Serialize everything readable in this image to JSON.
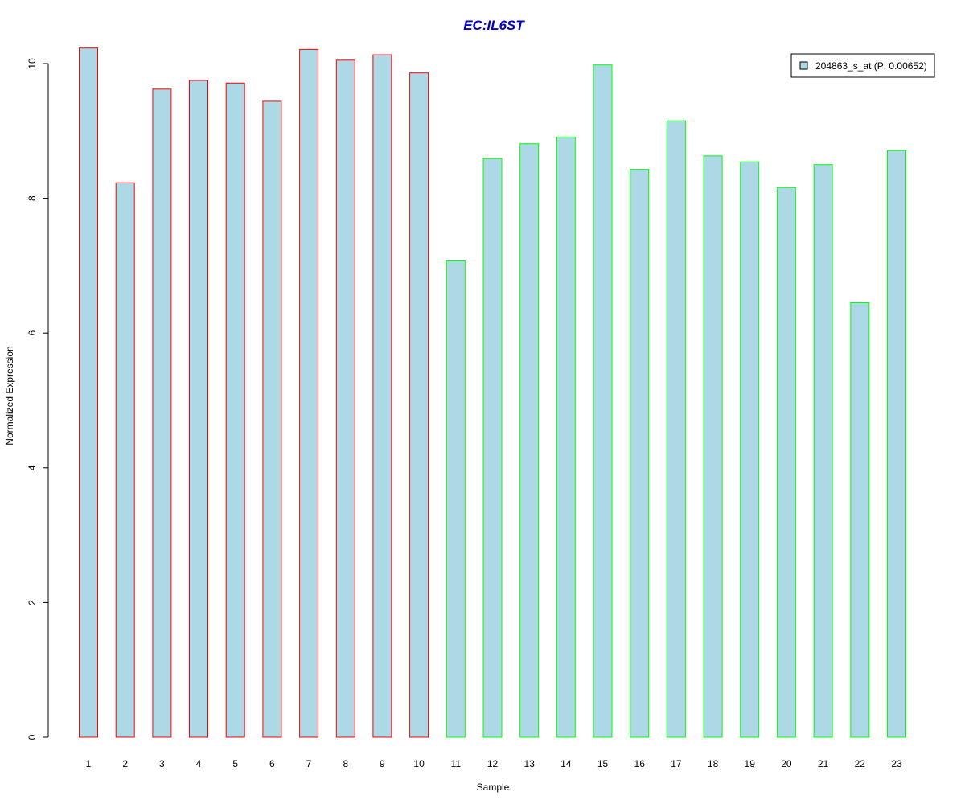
{
  "chart_data": {
    "type": "bar",
    "title": "EC:IL6ST",
    "xlabel": "Sample",
    "ylabel": "Normalized Expression",
    "ylim": [
      0,
      10.5
    ],
    "y_ticks": [
      0,
      2,
      4,
      6,
      8,
      10
    ],
    "grid": false,
    "legend_position": "top-right",
    "categories": [
      "1",
      "2",
      "3",
      "4",
      "5",
      "6",
      "7",
      "8",
      "9",
      "10",
      "11",
      "12",
      "13",
      "14",
      "15",
      "16",
      "17",
      "18",
      "19",
      "20",
      "21",
      "22",
      "23"
    ],
    "series": [
      {
        "name": "204863_s_at (P: 0.00652)",
        "values": [
          10.23,
          8.23,
          9.62,
          9.75,
          9.71,
          9.44,
          10.21,
          10.05,
          10.13,
          9.86,
          7.07,
          8.59,
          8.81,
          8.91,
          9.98,
          8.43,
          9.15,
          8.63,
          8.54,
          8.16,
          8.5,
          6.45,
          8.71
        ],
        "group": [
          "a",
          "a",
          "a",
          "a",
          "a",
          "a",
          "a",
          "a",
          "a",
          "a",
          "b",
          "b",
          "b",
          "b",
          "b",
          "b",
          "b",
          "b",
          "b",
          "b",
          "b",
          "b",
          "b"
        ]
      }
    ],
    "colors": {
      "title": "#0000CD",
      "bar_fill": "#ADD8E6",
      "group_a_border": "#FF0000",
      "group_b_border": "#00FF00",
      "axis": "#000000"
    }
  }
}
